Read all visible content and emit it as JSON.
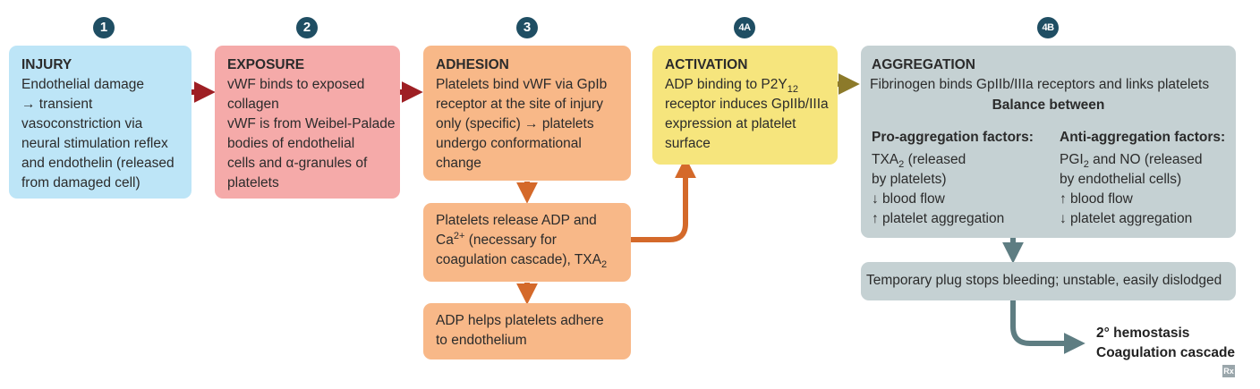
{
  "steps": {
    "s1": {
      "badge": "1",
      "title": "INJURY",
      "lines": [
        "Endothelial damage",
        "→ transient",
        "vasoconstriction via",
        "neural stimulation reflex",
        "and endothelin (released",
        "from damaged cell)"
      ]
    },
    "s2": {
      "badge": "2",
      "title": "EXPOSURE",
      "lines": [
        "vWF binds to exposed",
        "collagen",
        "vWF is from Weibel-Palade",
        "bodies of endothelial",
        "cells and α-granules of",
        "platelets"
      ]
    },
    "s3": {
      "badge": "3",
      "title": "ADHESION",
      "lines": [
        "Platelets bind vWF via GpIb",
        "receptor at the site of injury",
        "only (specific) → platelets",
        "undergo conformational",
        "change"
      ]
    },
    "s3b": {
      "lines": [
        "Platelets release ADP and",
        "(necessary for",
        "coagulation cascade), TXA"
      ],
      "ca": "Ca",
      "ca_sup": "2+",
      "txa_sub": "2"
    },
    "s3c": {
      "lines": [
        "ADP helps platelets adhere",
        "to endothelium"
      ]
    },
    "s4a": {
      "badge": "4A",
      "title": "ACTIVATION",
      "lines": [
        "ADP binding to P2Y",
        "receptor induces GpIIb/IIIa",
        "expression at platelet",
        "surface"
      ],
      "p2y_sub": "12"
    },
    "s4b": {
      "badge": "4B",
      "title": "AGGREGATION",
      "intro": "Fibrinogen binds GpIIb/IIIa receptors and links platelets",
      "balance": "Balance between",
      "pro": {
        "heading": "Pro-aggregation factors:",
        "lines": [
          "TXA",
          "(released",
          "by platelets)",
          "↓ blood flow",
          "↑ platelet aggregation"
        ],
        "sub": "2"
      },
      "anti": {
        "heading": "Anti-aggregation factors:",
        "lines": [
          "PGI",
          "and NO (released",
          "by endothelial cells)",
          "↑ blood flow",
          "↓ platelet aggregation"
        ],
        "sub": "2"
      }
    },
    "plug": {
      "text": "Temporary plug stops bleeding; unstable, easily dislodged"
    },
    "end": {
      "line1": "2° hemostasis",
      "line2": "Coagulation cascade"
    }
  },
  "logo": "Rx",
  "colors": {
    "blue": "#bde5f7",
    "pink": "#f5aaa9",
    "orange": "#f8b888",
    "yellow": "#f6e57d",
    "gray": "#c5d1d3",
    "dark_red_arrow": "#9e1f24",
    "orange_arrow": "#d4692a",
    "olive_arrow": "#8c7a2a",
    "gray_arrow": "#5e7d82",
    "badge": "#1f4e63"
  }
}
